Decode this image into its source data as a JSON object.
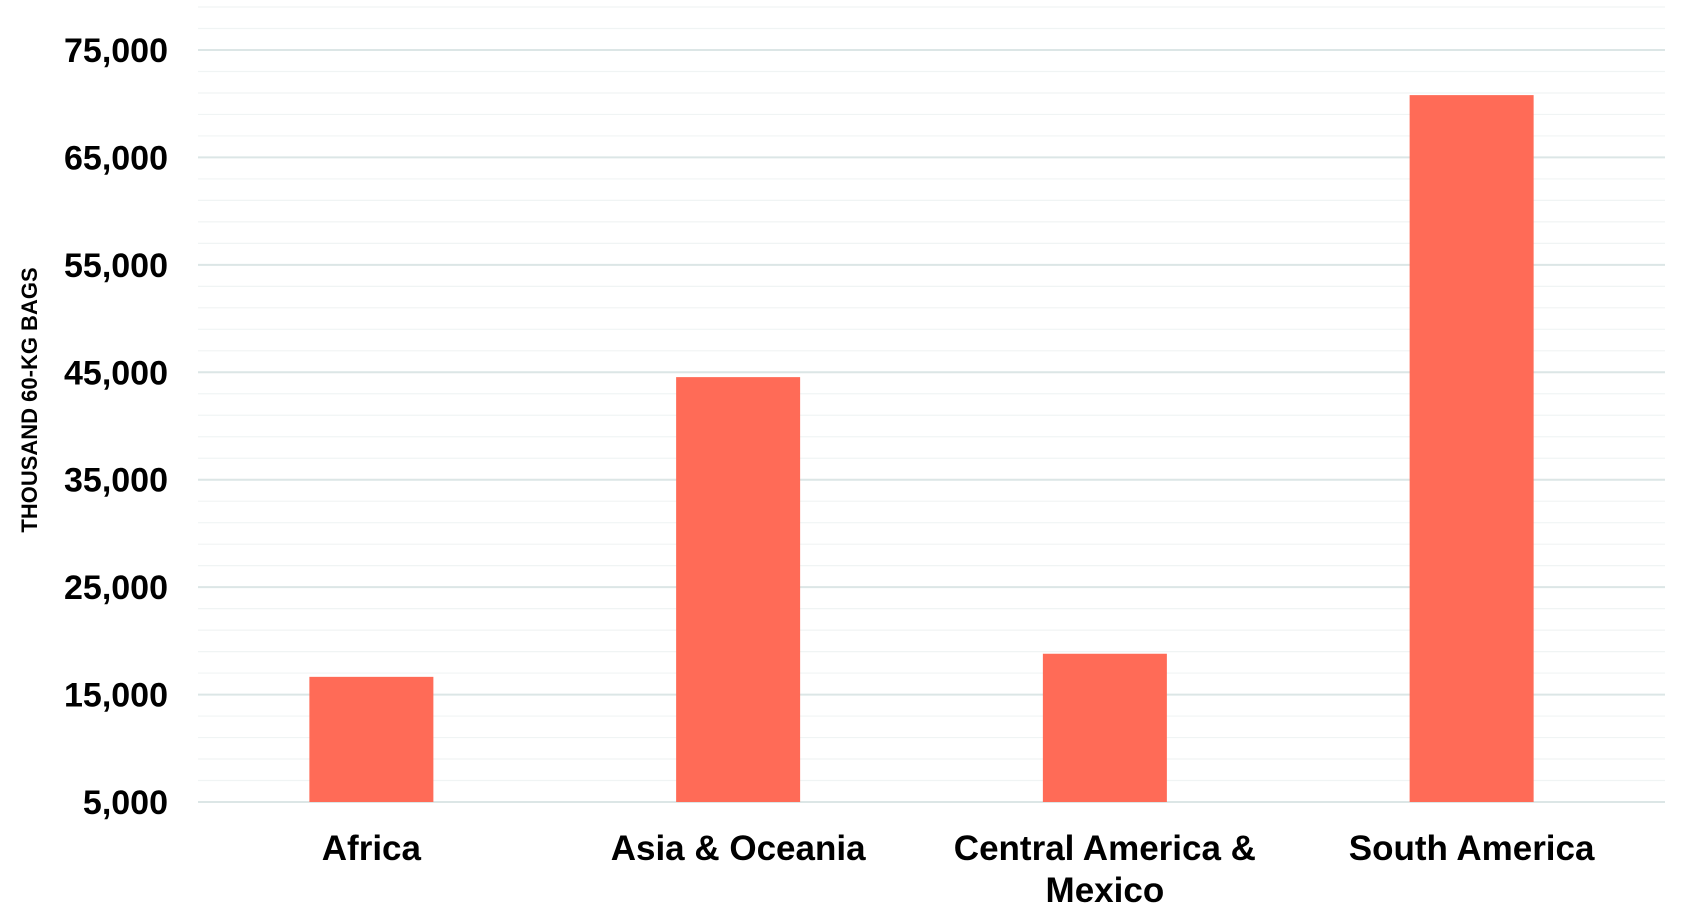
{
  "chart_data": {
    "type": "bar",
    "title": "",
    "xlabel": "",
    "ylabel": "THOUSAND 60-KG BAGS",
    "categories": [
      "Africa",
      "Asia & Oceania",
      "Central America & Mexico",
      "South America"
    ],
    "category_lines": [
      [
        "Africa"
      ],
      [
        "Asia & Oceania"
      ],
      [
        "Central America &",
        "Mexico"
      ],
      [
        "South America"
      ]
    ],
    "values": [
      16650,
      44550,
      18800,
      70800
    ],
    "ylim": [
      5000,
      75000
    ],
    "yticks": [
      5000,
      15000,
      25000,
      35000,
      45000,
      55000,
      65000,
      75000
    ],
    "ytick_labels": [
      "5,000",
      "15,000",
      "25,000",
      "35,000",
      "45,000",
      "55,000",
      "65,000",
      "75,000"
    ],
    "grid": true,
    "minor_grid": true,
    "legend": "none",
    "colors": {
      "bar": "#FF6B57",
      "major_grid": "#DCE6E6",
      "minor_grid": "#F0F4F4"
    }
  }
}
